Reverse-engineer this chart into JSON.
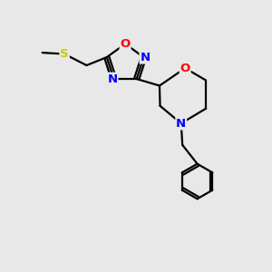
{
  "bg_color": "#e8e8e8",
  "bond_color": "#000000",
  "line_width": 1.6,
  "atom_colors": {
    "O": "#ff0000",
    "N": "#0000ff",
    "S": "#cccc00",
    "C": "#000000"
  },
  "font_size": 9.5,
  "figsize": [
    3.0,
    3.0
  ],
  "dpi": 100,
  "xlim": [
    0,
    10
  ],
  "ylim": [
    0,
    10
  ]
}
